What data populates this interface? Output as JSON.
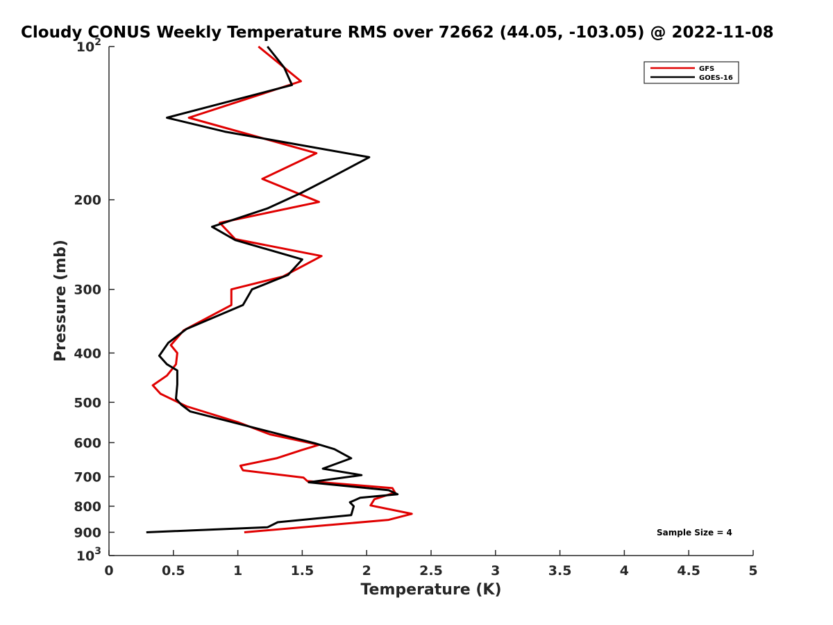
{
  "chart_data": {
    "type": "line",
    "title": "Cloudy CONUS Weekly Temperature RMS over 72662 (44.05, -103.05) @ 2022-11-08",
    "xlabel": "Temperature (K)",
    "ylabel": "Pressure (mb)",
    "xlim": [
      0,
      5
    ],
    "ylim": [
      100,
      1000
    ],
    "y_scale": "log",
    "y_reversed": true,
    "x_ticks": [
      {
        "value": 0,
        "label": "0"
      },
      {
        "value": 0.5,
        "label": "0.5"
      },
      {
        "value": 1,
        "label": "1"
      },
      {
        "value": 1.5,
        "label": "1.5"
      },
      {
        "value": 2,
        "label": "2"
      },
      {
        "value": 2.5,
        "label": "2.5"
      },
      {
        "value": 3,
        "label": "3"
      },
      {
        "value": 3.5,
        "label": "3.5"
      },
      {
        "value": 4,
        "label": "4"
      },
      {
        "value": 4.5,
        "label": "4.5"
      },
      {
        "value": 5,
        "label": "5"
      }
    ],
    "y_ticks": [
      {
        "value": 100,
        "base": "10",
        "exp": "2"
      },
      {
        "value": 200,
        "label": "200"
      },
      {
        "value": 300,
        "label": "300"
      },
      {
        "value": 400,
        "label": "400"
      },
      {
        "value": 500,
        "label": "500"
      },
      {
        "value": 600,
        "label": "600"
      },
      {
        "value": 700,
        "label": "700"
      },
      {
        "value": 800,
        "label": "800"
      },
      {
        "value": 900,
        "label": "900"
      },
      {
        "value": 1000,
        "base": "10",
        "exp": "3"
      }
    ],
    "grid": false,
    "legend_position": "top-right",
    "annotation": "Sample Size = 4",
    "series": [
      {
        "name": "GFS",
        "color": "#e00000",
        "points": [
          [
            1.16,
            100
          ],
          [
            1.49,
            117
          ],
          [
            0.62,
            138
          ],
          [
            1.61,
            162
          ],
          [
            1.19,
            182
          ],
          [
            1.63,
            202
          ],
          [
            0.86,
            222
          ],
          [
            0.98,
            239
          ],
          [
            1.65,
            258
          ],
          [
            1.35,
            283
          ],
          [
            0.95,
            300
          ],
          [
            0.95,
            322
          ],
          [
            0.58,
            361
          ],
          [
            0.48,
            386
          ],
          [
            0.53,
            400
          ],
          [
            0.52,
            421
          ],
          [
            0.45,
            443
          ],
          [
            0.34,
            463
          ],
          [
            0.4,
            481
          ],
          [
            0.6,
            509
          ],
          [
            1.0,
            547
          ],
          [
            1.25,
            578
          ],
          [
            1.63,
            606
          ],
          [
            1.5,
            620
          ],
          [
            1.3,
            644
          ],
          [
            1.02,
            666
          ],
          [
            1.04,
            680
          ],
          [
            1.51,
            703
          ],
          [
            1.54,
            714
          ],
          [
            2.2,
            737
          ],
          [
            2.22,
            752
          ],
          [
            2.06,
            775
          ],
          [
            2.03,
            797
          ],
          [
            2.35,
            828
          ],
          [
            2.17,
            851
          ],
          [
            1.05,
            900
          ]
        ]
      },
      {
        "name": "GOES-16",
        "color": "#000000",
        "points": [
          [
            1.23,
            100
          ],
          [
            1.36,
            110
          ],
          [
            1.42,
            119
          ],
          [
            0.45,
            138
          ],
          [
            0.9,
            147
          ],
          [
            2.02,
            165
          ],
          [
            1.72,
            181
          ],
          [
            1.49,
            194
          ],
          [
            1.23,
            208
          ],
          [
            0.8,
            226
          ],
          [
            0.98,
            240
          ],
          [
            1.5,
            262
          ],
          [
            1.39,
            281
          ],
          [
            1.11,
            300
          ],
          [
            1.04,
            322
          ],
          [
            0.6,
            359
          ],
          [
            0.46,
            382
          ],
          [
            0.39,
            405
          ],
          [
            0.45,
            421
          ],
          [
            0.53,
            433
          ],
          [
            0.53,
            461
          ],
          [
            0.52,
            492
          ],
          [
            0.56,
            505
          ],
          [
            0.63,
            521
          ],
          [
            1.6,
            602
          ],
          [
            1.75,
            618
          ],
          [
            1.88,
            644
          ],
          [
            1.66,
            675
          ],
          [
            1.96,
            695
          ],
          [
            1.55,
            718
          ],
          [
            2.17,
            744
          ],
          [
            2.24,
            758
          ],
          [
            1.95,
            770
          ],
          [
            1.87,
            786
          ],
          [
            1.9,
            800
          ],
          [
            1.88,
            833
          ],
          [
            1.31,
            860
          ],
          [
            1.23,
            880
          ],
          [
            0.29,
            900
          ]
        ]
      }
    ]
  }
}
